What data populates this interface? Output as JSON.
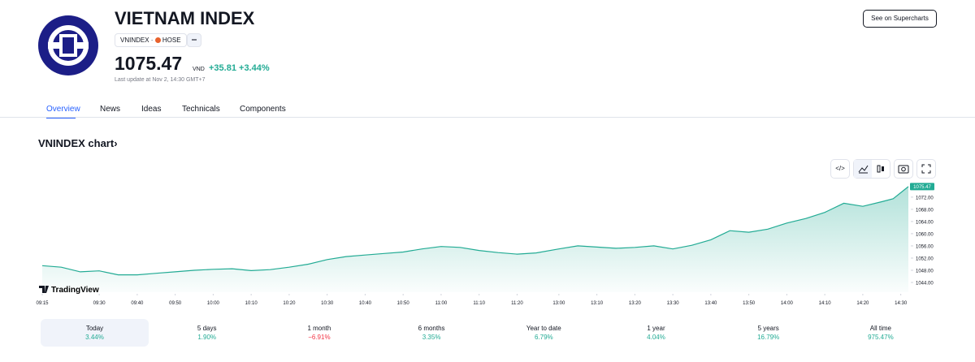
{
  "header": {
    "title": "VIETNAM INDEX",
    "symbol": "VNINDEX",
    "exchange": "HOSE",
    "price": "1075.47",
    "currency": "VND",
    "change": "+35.81",
    "change_percent": "+3.44%",
    "last_update": "Last update at Nov 2, 14:30 GMT+7",
    "button": "See on Supercharts"
  },
  "tabs": [
    "Overview",
    "News",
    "Ideas",
    "Technicals",
    "Components"
  ],
  "section_title": "VNINDEX chart",
  "chart_data": {
    "type": "area",
    "watermark": "TradingView",
    "color": "#22ab94",
    "x": [
      0,
      5,
      10,
      15,
      20,
      25,
      30,
      35,
      40,
      45,
      50,
      55,
      60,
      65,
      70,
      75,
      80,
      85,
      90,
      95,
      100,
      105,
      110,
      115,
      120,
      125,
      130,
      136,
      141,
      146,
      151,
      156,
      161,
      166,
      171,
      176,
      181,
      186,
      191,
      196,
      201,
      206,
      211,
      216,
      221,
      224,
      228
    ],
    "values": [
      1049.5,
      1049,
      1047.5,
      1047.8,
      1046.5,
      1046.5,
      1047,
      1047.5,
      1048,
      1048.3,
      1048.5,
      1047.9,
      1048.2,
      1049,
      1050,
      1051.5,
      1052.5,
      1053,
      1053.5,
      1054,
      1055,
      1055.8,
      1055.5,
      1054.5,
      1053.8,
      1053.3,
      1053.7,
      1055,
      1056,
      1055.6,
      1055.2,
      1055.5,
      1056,
      1055,
      1056.2,
      1058,
      1061,
      1060.5,
      1061.5,
      1063.5,
      1065,
      1067,
      1070,
      1069,
      1070.5,
      1071.5,
      1075.47
    ],
    "xlim": [
      0,
      228
    ],
    "ylim": [
      1040.8,
      1076.5
    ],
    "xticks": [
      {
        "value": 0,
        "label": "09:15"
      },
      {
        "value": 15,
        "label": "09:30"
      },
      {
        "value": 25,
        "label": "09:40"
      },
      {
        "value": 35,
        "label": "09:50"
      },
      {
        "value": 45,
        "label": "10:00"
      },
      {
        "value": 55,
        "label": "10:10"
      },
      {
        "value": 65,
        "label": "10:20"
      },
      {
        "value": 75,
        "label": "10:30"
      },
      {
        "value": 85,
        "label": "10:40"
      },
      {
        "value": 95,
        "label": "10:50"
      },
      {
        "value": 105,
        "label": "11:00"
      },
      {
        "value": 115,
        "label": "11:10"
      },
      {
        "value": 125,
        "label": "11:20"
      },
      {
        "value": 136,
        "label": "13:00"
      },
      {
        "value": 146,
        "label": "13:10"
      },
      {
        "value": 156,
        "label": "13:20"
      },
      {
        "value": 166,
        "label": "13:30"
      },
      {
        "value": 176,
        "label": "13:40"
      },
      {
        "value": 186,
        "label": "13:50"
      },
      {
        "value": 196,
        "label": "14:00"
      },
      {
        "value": 206,
        "label": "14:10"
      },
      {
        "value": 216,
        "label": "14:20"
      },
      {
        "value": 226,
        "label": "14:30"
      }
    ],
    "yticks": [
      {
        "value": 1044,
        "label": "1044.00"
      },
      {
        "value": 1048,
        "label": "1048.00"
      },
      {
        "value": 1052,
        "label": "1052.00"
      },
      {
        "value": 1056,
        "label": "1056.00"
      },
      {
        "value": 1060,
        "label": "1060.00"
      },
      {
        "value": 1064,
        "label": "1064.00"
      },
      {
        "value": 1068,
        "label": "1068.00"
      },
      {
        "value": 1072,
        "label": "1072.00"
      }
    ]
  },
  "periods": [
    {
      "label": "Today",
      "change": "3.44%",
      "color": "#22ab94"
    },
    {
      "label": "5 days",
      "change": "1.90%",
      "color": "#22ab94"
    },
    {
      "label": "1 month",
      "change": "−6.91%",
      "color": "#f23645"
    },
    {
      "label": "6 months",
      "change": "3.35%",
      "color": "#22ab94"
    },
    {
      "label": "Year to date",
      "change": "6.79%",
      "color": "#22ab94"
    },
    {
      "label": "1 year",
      "change": "4.04%",
      "color": "#22ab94"
    },
    {
      "label": "5 years",
      "change": "16.79%",
      "color": "#22ab94"
    },
    {
      "label": "All time",
      "change": "975.47%",
      "color": "#22ab94"
    }
  ]
}
